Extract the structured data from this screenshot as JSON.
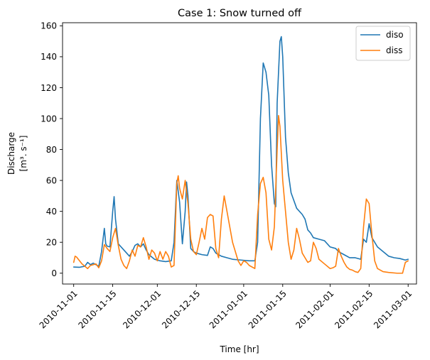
{
  "chart_data": {
    "type": "line",
    "title": "Case 1: Snow turned off",
    "xlabel": "Time [hr]",
    "ylabel_line1": "Discharge",
    "ylabel_line2": "[m³. s⁻¹]",
    "xlim": [
      "2010-10-28",
      "2011-03-04"
    ],
    "ylim": [
      -7,
      162
    ],
    "y_ticks": [
      0,
      20,
      40,
      60,
      80,
      100,
      120,
      140,
      160
    ],
    "x_ticks": [
      "2010-11-01",
      "2010-11-15",
      "2010-12-01",
      "2010-12-15",
      "2011-01-01",
      "2011-01-15",
      "2011-02-01",
      "2011-02-15",
      "2011-03-01"
    ],
    "grid": false,
    "legend_position": "top-right",
    "series": [
      {
        "name": "diso",
        "color": "#1f77b4",
        "points": [
          [
            "2010-11-01",
            4
          ],
          [
            "2010-11-03",
            3.8
          ],
          [
            "2010-11-05",
            4.5
          ],
          [
            "2010-11-06",
            7
          ],
          [
            "2010-11-07",
            5.5
          ],
          [
            "2010-11-08",
            6.5
          ],
          [
            "2010-11-09",
            5.5
          ],
          [
            "2010-11-10",
            4.5
          ],
          [
            "2010-11-11",
            14
          ],
          [
            "2010-11-12",
            29
          ],
          [
            "2010-11-12.5",
            19
          ],
          [
            "2010-11-13",
            17.5
          ],
          [
            "2010-11-14",
            17
          ],
          [
            "2010-11-15",
            40
          ],
          [
            "2010-11-15.5",
            49.5
          ],
          [
            "2010-11-16",
            35
          ],
          [
            "2010-11-17",
            19
          ],
          [
            "2010-11-19",
            15
          ],
          [
            "2010-11-21",
            11
          ],
          [
            "2010-11-22",
            14
          ],
          [
            "2010-11-23",
            18
          ],
          [
            "2010-11-24",
            19
          ],
          [
            "2010-11-25",
            17
          ],
          [
            "2010-11-26",
            19
          ],
          [
            "2010-11-27",
            15
          ],
          [
            "2010-11-28",
            12
          ],
          [
            "2010-11-30",
            9
          ],
          [
            "2010-12-02",
            8
          ],
          [
            "2010-12-04",
            7.5
          ],
          [
            "2010-12-06",
            8
          ],
          [
            "2010-12-07",
            20
          ],
          [
            "2010-12-08",
            60
          ],
          [
            "2010-12-09",
            46
          ],
          [
            "2010-12-10",
            19
          ],
          [
            "2010-12-11",
            40
          ],
          [
            "2010-12-11.5",
            59
          ],
          [
            "2010-12-12",
            50
          ],
          [
            "2010-12-13",
            16
          ],
          [
            "2010-12-14",
            14
          ],
          [
            "2010-12-15",
            13
          ],
          [
            "2010-12-17",
            12
          ],
          [
            "2010-12-19",
            11.5
          ],
          [
            "2010-12-20",
            17
          ],
          [
            "2010-12-21",
            16
          ],
          [
            "2010-12-22",
            13
          ],
          [
            "2010-12-24",
            11
          ],
          [
            "2010-12-26",
            10
          ],
          [
            "2010-12-28",
            9
          ],
          [
            "2010-12-31",
            8.5
          ],
          [
            "2011-01-03",
            8
          ],
          [
            "2011-01-05",
            8
          ],
          [
            "2011-01-06",
            20
          ],
          [
            "2011-01-07",
            100
          ],
          [
            "2011-01-08",
            136
          ],
          [
            "2011-01-09",
            130
          ],
          [
            "2011-01-10",
            115
          ],
          [
            "2011-01-11",
            70
          ],
          [
            "2011-01-12",
            45
          ],
          [
            "2011-01-12.5",
            43
          ],
          [
            "2011-01-13",
            110
          ],
          [
            "2011-01-14",
            150
          ],
          [
            "2011-01-14.5",
            153
          ],
          [
            "2011-01-15",
            140
          ],
          [
            "2011-01-16",
            88
          ],
          [
            "2011-01-17",
            65
          ],
          [
            "2011-01-18",
            52
          ],
          [
            "2011-01-20",
            42
          ],
          [
            "2011-01-22",
            38
          ],
          [
            "2011-01-23",
            35
          ],
          [
            "2011-01-24",
            28
          ],
          [
            "2011-01-25",
            26
          ],
          [
            "2011-01-26",
            23
          ],
          [
            "2011-01-28",
            22
          ],
          [
            "2011-01-30",
            21
          ],
          [
            "2011-02-01",
            17
          ],
          [
            "2011-02-03",
            16
          ],
          [
            "2011-02-04",
            14
          ],
          [
            "2011-02-06",
            12
          ],
          [
            "2011-02-08",
            10
          ],
          [
            "2011-02-10",
            10
          ],
          [
            "2011-02-12",
            9
          ],
          [
            "2011-02-13",
            22
          ],
          [
            "2011-02-14",
            20
          ],
          [
            "2011-02-15",
            32
          ],
          [
            "2011-02-16",
            23
          ],
          [
            "2011-02-18",
            17
          ],
          [
            "2011-02-20",
            14
          ],
          [
            "2011-02-22",
            11
          ],
          [
            "2011-02-24",
            10
          ],
          [
            "2011-02-26",
            9.5
          ],
          [
            "2011-02-28",
            8.5
          ],
          [
            "2011-03-01",
            9
          ]
        ]
      },
      {
        "name": "diss",
        "color": "#ff7f0e",
        "points": [
          [
            "2010-11-01",
            7
          ],
          [
            "2010-11-01.5",
            11
          ],
          [
            "2010-11-02",
            10.5
          ],
          [
            "2010-11-04",
            6
          ],
          [
            "2010-11-06",
            3
          ],
          [
            "2010-11-07",
            5
          ],
          [
            "2010-11-09",
            6
          ],
          [
            "2010-11-10",
            3.5
          ],
          [
            "2010-11-11",
            8
          ],
          [
            "2010-11-12",
            18.5
          ],
          [
            "2010-11-13",
            16
          ],
          [
            "2010-11-14",
            14
          ],
          [
            "2010-11-15",
            23
          ],
          [
            "2010-11-16",
            29
          ],
          [
            "2010-11-17",
            18
          ],
          [
            "2010-11-18",
            9
          ],
          [
            "2010-11-19",
            5
          ],
          [
            "2010-11-20",
            3
          ],
          [
            "2010-11-21",
            8
          ],
          [
            "2010-11-22",
            15
          ],
          [
            "2010-11-23",
            11
          ],
          [
            "2010-11-24",
            18
          ],
          [
            "2010-11-25",
            17
          ],
          [
            "2010-11-26",
            23
          ],
          [
            "2010-11-27",
            17
          ],
          [
            "2010-11-28",
            9
          ],
          [
            "2010-11-29",
            15
          ],
          [
            "2010-11-30",
            13
          ],
          [
            "2010-12-01",
            8
          ],
          [
            "2010-12-02",
            14
          ],
          [
            "2010-12-03",
            9
          ],
          [
            "2010-12-04",
            14
          ],
          [
            "2010-12-05",
            11
          ],
          [
            "2010-12-06",
            4
          ],
          [
            "2010-12-07",
            5
          ],
          [
            "2010-12-08",
            58
          ],
          [
            "2010-12-08.5",
            63
          ],
          [
            "2010-12-09",
            55
          ],
          [
            "2010-12-10",
            48
          ],
          [
            "2010-12-11",
            60
          ],
          [
            "2010-12-12",
            45
          ],
          [
            "2010-12-13",
            22
          ],
          [
            "2010-12-14",
            14
          ],
          [
            "2010-12-15",
            12
          ],
          [
            "2010-12-16",
            20
          ],
          [
            "2010-12-17",
            29
          ],
          [
            "2010-12-18",
            22
          ],
          [
            "2010-12-19",
            36
          ],
          [
            "2010-12-20",
            38
          ],
          [
            "2010-12-21",
            37
          ],
          [
            "2010-12-22",
            16
          ],
          [
            "2010-12-23",
            10
          ],
          [
            "2010-12-24",
            35
          ],
          [
            "2010-12-25",
            50
          ],
          [
            "2010-12-26",
            40
          ],
          [
            "2010-12-28",
            20
          ],
          [
            "2010-12-30",
            8
          ],
          [
            "2010-12-31",
            5
          ],
          [
            "2011-01-01",
            8
          ],
          [
            "2011-01-02",
            7
          ],
          [
            "2011-01-03",
            5
          ],
          [
            "2011-01-05",
            3
          ],
          [
            "2011-01-06",
            38
          ],
          [
            "2011-01-07",
            58
          ],
          [
            "2011-01-08",
            62
          ],
          [
            "2011-01-09",
            52
          ],
          [
            "2011-01-10",
            22
          ],
          [
            "2011-01-11",
            15
          ],
          [
            "2011-01-12",
            30
          ],
          [
            "2011-01-13",
            80
          ],
          [
            "2011-01-13.5",
            102
          ],
          [
            "2011-01-14",
            95
          ],
          [
            "2011-01-15",
            60
          ],
          [
            "2011-01-16",
            40
          ],
          [
            "2011-01-17",
            20
          ],
          [
            "2011-01-18",
            9
          ],
          [
            "2011-01-19",
            15
          ],
          [
            "2011-01-20",
            29
          ],
          [
            "2011-01-21",
            22
          ],
          [
            "2011-01-22",
            13
          ],
          [
            "2011-01-24",
            7
          ],
          [
            "2011-01-25",
            8
          ],
          [
            "2011-01-26",
            20
          ],
          [
            "2011-01-27",
            16
          ],
          [
            "2011-01-28",
            9
          ],
          [
            "2011-01-30",
            6
          ],
          [
            "2011-02-01",
            3
          ],
          [
            "2011-02-02",
            3.5
          ],
          [
            "2011-02-03",
            4.5
          ],
          [
            "2011-02-04",
            16
          ],
          [
            "2011-02-05",
            11
          ],
          [
            "2011-02-06",
            7
          ],
          [
            "2011-02-07",
            4
          ],
          [
            "2011-02-08",
            2.5
          ],
          [
            "2011-02-09",
            2
          ],
          [
            "2011-02-10",
            1
          ],
          [
            "2011-02-11",
            0.5
          ],
          [
            "2011-02-12",
            3
          ],
          [
            "2011-02-13",
            30
          ],
          [
            "2011-02-14",
            48
          ],
          [
            "2011-02-15",
            45
          ],
          [
            "2011-02-16",
            25
          ],
          [
            "2011-02-17",
            8
          ],
          [
            "2011-02-18",
            3
          ],
          [
            "2011-02-20",
            1
          ],
          [
            "2011-02-22",
            0.5
          ],
          [
            "2011-02-25",
            0
          ],
          [
            "2011-02-27",
            0
          ],
          [
            "2011-02-28",
            7
          ],
          [
            "2011-03-01",
            8
          ]
        ]
      }
    ]
  }
}
